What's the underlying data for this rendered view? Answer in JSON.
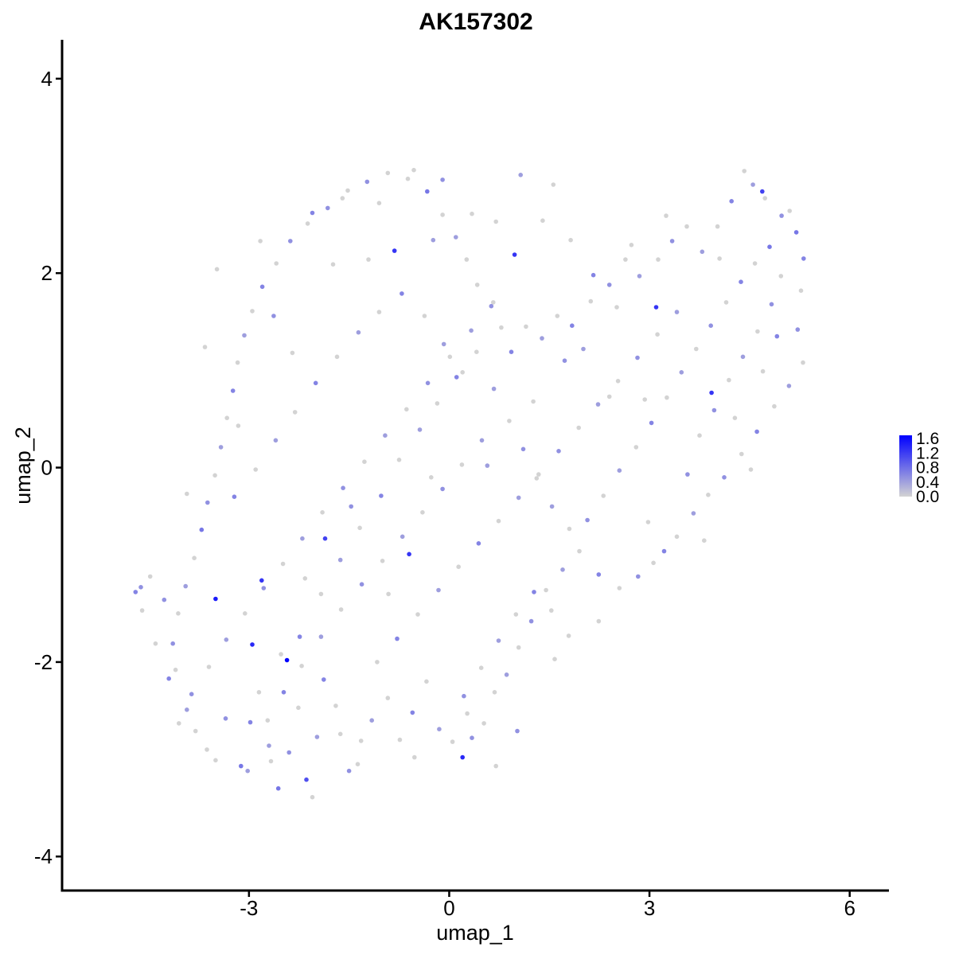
{
  "chart_data": {
    "type": "scatter",
    "title": "AK157302",
    "xlabel": "umap_1",
    "ylabel": "umap_2",
    "xlim": [
      -5.8,
      6.6
    ],
    "ylim": [
      -4.35,
      4.4
    ],
    "x_ticks": [
      -3,
      0,
      3,
      6
    ],
    "x_tick_labels": [
      "-3",
      "0",
      "3",
      "6"
    ],
    "y_ticks": [
      -4,
      -2,
      0,
      2,
      4
    ],
    "y_tick_labels": [
      "-4",
      "-2",
      "0",
      "2",
      "4"
    ],
    "grid": false,
    "legend_position": "right",
    "color_scale": {
      "low": "#d3d3d3",
      "high": "#0000ff",
      "min": 0.0,
      "max": 1.6,
      "breaks": [
        "1.6",
        "1.2",
        "0.8",
        "0.4",
        "0.0"
      ]
    },
    "points": [
      [
        -4.7,
        -1.28,
        0.6
      ],
      [
        -4.62,
        -1.23,
        0.5
      ],
      [
        -4.6,
        -1.47,
        0.0
      ],
      [
        -4.4,
        -1.81,
        0.0
      ],
      [
        -4.2,
        -2.17,
        0.6
      ],
      [
        -4.05,
        -2.63,
        0.0
      ],
      [
        -3.93,
        -2.49,
        0.4
      ],
      [
        -3.8,
        -2.71,
        0.0
      ],
      [
        -3.63,
        -2.9,
        0.0
      ],
      [
        -3.5,
        -3.01,
        0.0
      ],
      [
        -3.35,
        -2.58,
        0.5
      ],
      [
        -3.12,
        -3.07,
        0.7
      ],
      [
        -2.98,
        -2.62,
        0.6
      ],
      [
        -2.85,
        -2.31,
        0.0
      ],
      [
        -2.7,
        -2.86,
        0.4
      ],
      [
        -2.56,
        -3.3,
        0.7
      ],
      [
        -2.4,
        -2.93,
        0.5
      ],
      [
        -2.26,
        -2.47,
        0.0
      ],
      [
        -2.14,
        -3.21,
        1.0
      ],
      [
        -1.98,
        -2.77,
        0.4
      ],
      [
        -1.88,
        -2.18,
        0.6
      ],
      [
        -1.7,
        -2.45,
        0.0
      ],
      [
        -1.5,
        -3.12,
        0.5
      ],
      [
        -1.32,
        -2.81,
        0.0
      ],
      [
        -1.16,
        -2.6,
        0.4
      ],
      [
        -0.92,
        -2.37,
        0.0
      ],
      [
        -0.74,
        -2.8,
        0.0
      ],
      [
        -0.55,
        -2.52,
        0.6
      ],
      [
        -0.34,
        -2.2,
        0.0
      ],
      [
        -0.15,
        -2.69,
        0.4
      ],
      [
        0.05,
        -2.82,
        0.0
      ],
      [
        0.2,
        -2.98,
        1.3
      ],
      [
        0.34,
        -2.78,
        0.5
      ],
      [
        0.52,
        -2.63,
        0.0
      ],
      [
        0.68,
        -2.31,
        0.0
      ],
      [
        0.86,
        -2.13,
        0.4
      ],
      [
        1.04,
        -1.85,
        0.0
      ],
      [
        1.23,
        -1.58,
        0.5
      ],
      [
        1.45,
        -1.26,
        0.0
      ],
      [
        1.7,
        -1.05,
        0.4
      ],
      [
        1.95,
        -0.86,
        0.0
      ],
      [
        2.24,
        -1.1,
        0.6
      ],
      [
        2.55,
        -1.24,
        0.0
      ],
      [
        2.83,
        -1.12,
        0.5
      ],
      [
        3.06,
        -0.98,
        0.0
      ],
      [
        3.22,
        -0.86,
        0.6
      ],
      [
        3.41,
        -0.71,
        0.0
      ],
      [
        3.66,
        -0.47,
        0.4
      ],
      [
        3.88,
        -0.28,
        0.0
      ],
      [
        4.12,
        -0.1,
        0.5
      ],
      [
        4.38,
        0.14,
        0.0
      ],
      [
        4.61,
        0.37,
        0.6
      ],
      [
        4.87,
        0.63,
        0.0
      ],
      [
        5.09,
        0.84,
        0.4
      ],
      [
        5.3,
        1.08,
        0.0
      ],
      [
        5.22,
        1.42,
        0.5
      ],
      [
        5.27,
        1.82,
        0.0
      ],
      [
        5.31,
        2.15,
        0.6
      ],
      [
        5.2,
        2.42,
        0.7
      ],
      [
        4.98,
        2.59,
        0.5
      ],
      [
        4.73,
        2.77,
        0.0
      ],
      [
        4.55,
        2.91,
        0.4
      ],
      [
        4.42,
        3.05,
        0.0
      ],
      [
        4.23,
        2.74,
        0.6
      ],
      [
        4.02,
        2.48,
        0.0
      ],
      [
        3.79,
        2.22,
        0.4
      ],
      [
        3.56,
        2.48,
        0.0
      ],
      [
        3.34,
        2.33,
        0.5
      ],
      [
        3.13,
        2.14,
        0.0
      ],
      [
        2.85,
        1.97,
        0.4
      ],
      [
        2.64,
        2.14,
        0.0
      ],
      [
        2.4,
        1.88,
        0.5
      ],
      [
        2.12,
        1.71,
        0.0
      ],
      [
        1.84,
        1.46,
        0.6
      ],
      [
        1.62,
        1.56,
        0.0
      ],
      [
        1.39,
        1.33,
        0.4
      ],
      [
        1.15,
        1.45,
        0.0
      ],
      [
        0.93,
        1.19,
        0.6
      ],
      [
        0.78,
        1.44,
        0.0
      ],
      [
        0.63,
        1.66,
        0.5
      ],
      [
        0.42,
        1.88,
        0.0
      ],
      [
        0.26,
        2.14,
        0.0
      ],
      [
        0.1,
        2.37,
        0.4
      ],
      [
        -0.1,
        2.6,
        0.0
      ],
      [
        -0.33,
        2.84,
        0.7
      ],
      [
        -0.62,
        2.97,
        0.0
      ],
      [
        -0.92,
        3.03,
        0.0
      ],
      [
        -1.23,
        2.94,
        0.5
      ],
      [
        -1.52,
        2.85,
        0.0
      ],
      [
        -1.82,
        2.67,
        0.5
      ],
      [
        -2.12,
        2.51,
        0.0
      ],
      [
        -2.38,
        2.33,
        0.5
      ],
      [
        -2.59,
        2.1,
        0.0
      ],
      [
        -2.8,
        1.86,
        0.6
      ],
      [
        -2.95,
        1.61,
        0.0
      ],
      [
        -3.07,
        1.36,
        0.4
      ],
      [
        -3.17,
        1.08,
        0.0
      ],
      [
        -3.24,
        0.79,
        0.6
      ],
      [
        -3.33,
        0.51,
        0.0
      ],
      [
        -3.42,
        0.21,
        0.4
      ],
      [
        -3.51,
        -0.08,
        0.0
      ],
      [
        -3.62,
        -0.36,
        0.5
      ],
      [
        -3.71,
        -0.64,
        0.7
      ],
      [
        -3.82,
        -0.93,
        0.0
      ],
      [
        -3.95,
        -1.22,
        0.4
      ],
      [
        -4.06,
        -1.5,
        0.0
      ],
      [
        -4.14,
        -1.81,
        0.5
      ],
      [
        -4.1,
        -2.08,
        0.0
      ],
      [
        -3.5,
        -1.35,
        1.4
      ],
      [
        -2.95,
        -1.82,
        1.3
      ],
      [
        -2.43,
        -1.98,
        1.6
      ],
      [
        -1.86,
        -0.73,
        1.1
      ],
      [
        -0.6,
        -0.89,
        1.2
      ],
      [
        0.98,
        2.19,
        1.2
      ],
      [
        -0.82,
        2.23,
        1.2
      ],
      [
        3.1,
        1.65,
        1.2
      ],
      [
        4.69,
        2.84,
        1.1
      ],
      [
        3.93,
        0.77,
        1.2
      ],
      [
        -2.52,
        -1.92,
        0.0
      ],
      [
        -2.81,
        -1.16,
        1.2
      ],
      [
        -2.24,
        -1.74,
        0.6
      ],
      [
        -1.92,
        -1.3,
        0.0
      ],
      [
        -1.63,
        -0.95,
        0.4
      ],
      [
        -1.34,
        -0.62,
        0.0
      ],
      [
        -1.02,
        -0.29,
        0.6
      ],
      [
        -0.75,
        0.08,
        0.0
      ],
      [
        -0.44,
        0.39,
        0.4
      ],
      [
        -0.18,
        0.66,
        0.0
      ],
      [
        0.11,
        0.93,
        0.6
      ],
      [
        0.41,
        1.19,
        0.0
      ],
      [
        0.67,
        0.81,
        0.4
      ],
      [
        0.9,
        0.48,
        0.0
      ],
      [
        1.11,
        0.19,
        0.5
      ],
      [
        1.31,
        -0.11,
        0.0
      ],
      [
        1.54,
        -0.4,
        0.4
      ],
      [
        1.8,
        -0.63,
        0.0
      ],
      [
        2.07,
        -0.54,
        0.5
      ],
      [
        2.31,
        -0.29,
        0.0
      ],
      [
        2.55,
        -0.03,
        0.4
      ],
      [
        2.8,
        0.21,
        0.0
      ],
      [
        3.03,
        0.46,
        0.6
      ],
      [
        3.26,
        0.72,
        0.0
      ],
      [
        3.48,
        0.98,
        0.4
      ],
      [
        3.7,
        1.22,
        0.0
      ],
      [
        3.92,
        1.46,
        0.5
      ],
      [
        4.15,
        1.7,
        0.0
      ],
      [
        4.37,
        1.91,
        0.6
      ],
      [
        4.58,
        2.1,
        0.0
      ],
      [
        4.8,
        2.27,
        0.7
      ],
      [
        4.97,
        1.97,
        0.0
      ],
      [
        4.83,
        1.68,
        0.5
      ],
      [
        4.62,
        1.4,
        0.0
      ],
      [
        4.4,
        1.14,
        0.4
      ],
      [
        4.19,
        0.9,
        0.0
      ],
      [
        3.97,
        0.59,
        0.5
      ],
      [
        3.75,
        0.33,
        0.0
      ],
      [
        -3.22,
        -0.3,
        0.6
      ],
      [
        -2.9,
        -0.02,
        0.0
      ],
      [
        -2.6,
        0.28,
        0.4
      ],
      [
        -2.31,
        0.57,
        0.0
      ],
      [
        -2.0,
        0.87,
        0.6
      ],
      [
        -1.68,
        1.14,
        0.0
      ],
      [
        -1.36,
        1.39,
        0.4
      ],
      [
        -1.05,
        1.6,
        0.0
      ],
      [
        -0.71,
        1.79,
        0.6
      ],
      [
        -0.37,
        1.56,
        0.0
      ],
      [
        -0.08,
        1.27,
        0.4
      ],
      [
        0.2,
        0.98,
        0.0
      ],
      [
        -2.72,
        -2.6,
        0.0
      ],
      [
        -2.48,
        -2.31,
        0.6
      ],
      [
        -2.21,
        -2.04,
        0.0
      ],
      [
        -1.92,
        -1.74,
        0.4
      ],
      [
        -1.62,
        -1.46,
        0.0
      ],
      [
        -1.31,
        -1.2,
        0.5
      ],
      [
        -1.0,
        -0.96,
        0.0
      ],
      [
        -0.7,
        -0.71,
        0.4
      ],
      [
        -0.4,
        -0.46,
        0.0
      ],
      [
        -0.1,
        -0.22,
        0.5
      ],
      [
        0.19,
        0.03,
        0.0
      ],
      [
        0.49,
        0.28,
        0.4
      ],
      [
        -3.86,
        -2.33,
        0.5
      ],
      [
        -3.6,
        -2.05,
        0.0
      ],
      [
        -3.34,
        -1.77,
        0.4
      ],
      [
        -3.06,
        -1.5,
        0.0
      ],
      [
        -2.78,
        -1.24,
        0.5
      ],
      [
        -2.49,
        -0.99,
        0.0
      ],
      [
        -2.2,
        -0.73,
        0.4
      ],
      [
        -1.9,
        -0.46,
        0.0
      ],
      [
        -1.59,
        -0.21,
        0.5
      ],
      [
        -1.27,
        0.06,
        0.0
      ],
      [
        -0.96,
        0.33,
        0.4
      ],
      [
        -0.64,
        0.6,
        0.0
      ],
      [
        -0.32,
        0.87,
        0.5
      ],
      [
        0.01,
        1.14,
        0.0
      ],
      [
        0.33,
        1.41,
        0.4
      ],
      [
        0.66,
        1.7,
        0.0
      ],
      [
        -1.08,
        -2.0,
        0.0
      ],
      [
        -0.78,
        -1.76,
        0.6
      ],
      [
        -0.47,
        -1.51,
        0.0
      ],
      [
        -0.16,
        -1.26,
        0.4
      ],
      [
        0.14,
        -1.02,
        0.0
      ],
      [
        0.44,
        -0.78,
        0.6
      ],
      [
        0.74,
        -0.55,
        0.0
      ],
      [
        1.04,
        -0.31,
        0.4
      ],
      [
        1.34,
        -0.07,
        0.0
      ],
      [
        1.64,
        0.17,
        0.5
      ],
      [
        1.94,
        0.41,
        0.0
      ],
      [
        2.23,
        0.65,
        0.4
      ],
      [
        2.53,
        0.89,
        0.0
      ],
      [
        2.82,
        1.13,
        0.5
      ],
      [
        3.12,
        1.37,
        0.0
      ],
      [
        3.41,
        1.6,
        0.4
      ],
      [
        0.22,
        -2.35,
        0.5
      ],
      [
        0.48,
        -2.06,
        0.0
      ],
      [
        0.74,
        -1.78,
        0.4
      ],
      [
        1.0,
        -1.51,
        0.0
      ],
      [
        1.27,
        -1.28,
        0.6
      ],
      [
        1.53,
        -1.47,
        0.0
      ],
      [
        1.79,
        -1.73,
        0.0
      ],
      [
        -3.48,
        2.04,
        0.0
      ],
      [
        -2.05,
        2.62,
        0.6
      ],
      [
        -1.6,
        2.77,
        0.0
      ],
      [
        -0.1,
        2.96,
        0.5
      ],
      [
        0.7,
        2.53,
        0.0
      ],
      [
        1.07,
        3.01,
        0.4
      ],
      [
        1.56,
        2.91,
        0.0
      ],
      [
        2.16,
        1.98,
        0.6
      ],
      [
        2.73,
        2.29,
        0.0
      ],
      [
        -4.48,
        -1.12,
        0.0
      ],
      [
        -4.27,
        -1.36,
        0.5
      ],
      [
        -3.02,
        -3.12,
        0.4
      ],
      [
        -1.37,
        -3.05,
        0.0
      ],
      [
        0.7,
        -3.07,
        0.0
      ],
      [
        1.02,
        -2.71,
        0.5
      ],
      [
        -2.63,
        1.56,
        0.5
      ],
      [
        -1.74,
        2.09,
        0.0
      ],
      [
        -0.24,
        2.34,
        0.4
      ],
      [
        1.4,
        2.54,
        0.0
      ],
      [
        1.73,
        1.1,
        0.5
      ],
      [
        2.4,
        0.73,
        0.0
      ],
      [
        3.57,
        -0.07,
        0.5
      ],
      [
        4.28,
        0.51,
        0.0
      ],
      [
        4.91,
        1.35,
        0.6
      ],
      [
        5.1,
        2.64,
        0.0
      ],
      [
        -2.16,
        -1.14,
        0.0
      ],
      [
        -1.47,
        -0.4,
        0.5
      ],
      [
        -0.91,
        -1.3,
        0.0
      ],
      [
        -0.27,
        -0.1,
        0.0
      ],
      [
        0.57,
        0.02,
        0.4
      ],
      [
        1.26,
        0.68,
        0.0
      ],
      [
        2.01,
        1.22,
        0.4
      ],
      [
        2.93,
        0.7,
        0.0
      ],
      [
        -3.16,
        0.43,
        0.0
      ],
      [
        -2.35,
        1.18,
        0.0
      ],
      [
        -1.21,
        2.14,
        0.0
      ],
      [
        0.34,
        2.61,
        0.0
      ],
      [
        -2.67,
        -3.02,
        0.0
      ],
      [
        -2.05,
        -3.39,
        0.0
      ],
      [
        -1.63,
        -2.74,
        0.0
      ],
      [
        -0.52,
        -2.98,
        0.0
      ],
      [
        0.27,
        -2.53,
        0.0
      ],
      [
        1.58,
        -1.97,
        0.0
      ],
      [
        2.24,
        -1.58,
        0.0
      ],
      [
        2.98,
        -0.56,
        0.0
      ],
      [
        3.82,
        -0.75,
        0.0
      ],
      [
        4.52,
        -0.02,
        0.0
      ],
      [
        4.7,
        0.99,
        0.0
      ],
      [
        4.05,
        2.15,
        0.0
      ],
      [
        3.25,
        2.59,
        0.0
      ],
      [
        2.51,
        1.65,
        0.0
      ],
      [
        1.82,
        2.34,
        0.0
      ],
      [
        -0.53,
        3.06,
        0.0
      ],
      [
        -1.05,
        2.72,
        0.0
      ],
      [
        -2.83,
        2.33,
        0.0
      ],
      [
        -3.66,
        1.24,
        0.0
      ],
      [
        -3.93,
        -0.27,
        0.0
      ]
    ]
  }
}
